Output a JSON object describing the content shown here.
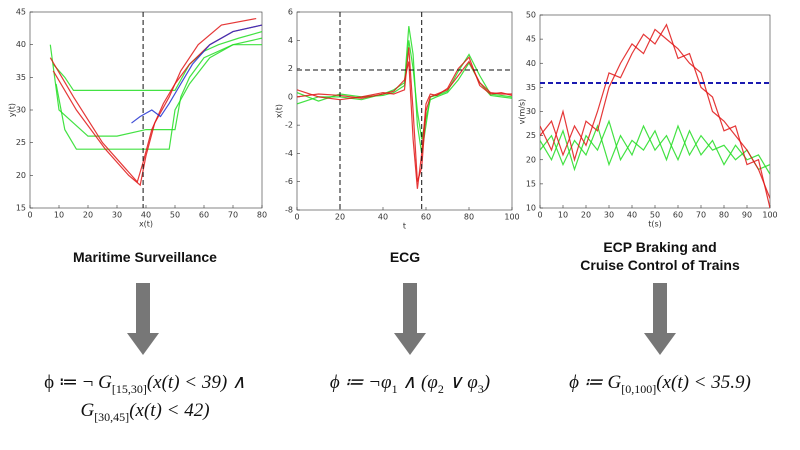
{
  "chart_data": [
    {
      "type": "line",
      "xlabel": "x(t)",
      "ylabel": "y(t)",
      "xlim": [
        0,
        80
      ],
      "ylim": [
        15,
        45
      ],
      "xticks": [
        0,
        10,
        20,
        30,
        40,
        50,
        60,
        70,
        80
      ],
      "yticks": [
        15,
        20,
        25,
        30,
        35,
        40,
        45
      ],
      "reference_lines": {
        "x": [
          39
        ]
      },
      "series": [
        {
          "color": "#22dd22",
          "x": [
            7,
            10,
            15,
            20,
            30,
            40,
            50,
            52,
            55,
            60,
            70,
            80
          ],
          "values": [
            40,
            30,
            28,
            26,
            26,
            27,
            27,
            32,
            35,
            38,
            40,
            41
          ]
        },
        {
          "color": "#22dd22",
          "x": [
            8,
            12,
            15,
            25,
            35,
            45,
            50,
            55,
            60,
            65,
            72,
            80
          ],
          "values": [
            37,
            35,
            33,
            33,
            33,
            33,
            33,
            37,
            39,
            40,
            41,
            42
          ]
        },
        {
          "color": "#22dd22",
          "x": [
            9,
            12,
            16,
            25,
            35,
            45,
            48,
            50,
            55,
            62,
            70,
            80
          ],
          "values": [
            34,
            27,
            24,
            24,
            24,
            24,
            24,
            30,
            34,
            38,
            40,
            40
          ]
        },
        {
          "color": "#e01515",
          "x": [
            7,
            15,
            25,
            33,
            37,
            39,
            42,
            46,
            50,
            55,
            62,
            70,
            80
          ],
          "values": [
            38,
            32,
            25,
            21,
            19,
            22,
            27,
            31,
            34,
            37,
            40,
            42,
            43
          ]
        },
        {
          "color": "#e01515",
          "x": [
            8,
            16,
            26,
            34,
            38,
            40,
            43,
            48,
            52,
            58,
            66,
            78
          ],
          "values": [
            36,
            30,
            24,
            20,
            18.5,
            23,
            28,
            32,
            36,
            40,
            43,
            44
          ]
        },
        {
          "color": "#2030d0",
          "x": [
            35,
            38,
            42,
            45,
            48,
            52,
            56,
            62,
            70,
            80
          ],
          "values": [
            28,
            29,
            30,
            29,
            31,
            34,
            37,
            40,
            42,
            43
          ]
        }
      ]
    },
    {
      "type": "line",
      "xlabel": "t",
      "ylabel": "x(t)",
      "xlim": [
        0,
        100
      ],
      "ylim": [
        -8,
        6
      ],
      "xticks": [
        0,
        20,
        40,
        60,
        80,
        100
      ],
      "yticks": [
        -8,
        -6,
        -4,
        -2,
        0,
        2,
        4,
        6
      ],
      "reference_lines": {
        "x": [
          20,
          58
        ],
        "y": [
          1.9
        ]
      },
      "x": [
        0,
        10,
        20,
        30,
        40,
        45,
        50,
        52,
        54,
        56,
        58,
        60,
        62,
        65,
        70,
        75,
        80,
        85,
        90,
        95,
        100
      ],
      "series": [
        {
          "color": "#22dd22",
          "values": [
            -0.5,
            0,
            0,
            -0.2,
            0.2,
            0.5,
            1,
            5,
            3,
            -2,
            -4,
            -2,
            0,
            0.1,
            0.4,
            1.8,
            3,
            1.5,
            0.2,
            0.1,
            0
          ]
        },
        {
          "color": "#22dd22",
          "values": [
            0.3,
            -0.3,
            0.2,
            0,
            0.1,
            0.3,
            0.8,
            4,
            2,
            -1,
            -3,
            -1.5,
            -0.2,
            0,
            0.3,
            1.2,
            2.4,
            1,
            0.1,
            0,
            -0.1
          ]
        },
        {
          "color": "#e01515",
          "values": [
            0.5,
            0,
            -0.2,
            0,
            0.3,
            0.2,
            0.5,
            3.5,
            -1,
            -6,
            -5,
            -1,
            0,
            0.2,
            0.5,
            1.5,
            2.5,
            1,
            0.3,
            0.2,
            0.2
          ]
        },
        {
          "color": "#e01515",
          "values": [
            0,
            0.2,
            0.1,
            -0.1,
            0.2,
            0.4,
            1.2,
            2.5,
            -3,
            -6.5,
            -4,
            -0.5,
            0.2,
            0.1,
            0.6,
            2,
            2.8,
            0.8,
            0.2,
            0.3,
            0.1
          ]
        }
      ]
    },
    {
      "type": "line",
      "xlabel": "t(s)",
      "ylabel": "v(m/s)",
      "xlim": [
        0,
        100
      ],
      "ylim": [
        10,
        50
      ],
      "xticks": [
        0,
        10,
        20,
        30,
        40,
        50,
        60,
        70,
        80,
        90,
        100
      ],
      "yticks": [
        10,
        15,
        20,
        25,
        30,
        35,
        40,
        45,
        50
      ],
      "reference_lines": {
        "y": [
          35.9
        ]
      },
      "x": [
        0,
        5,
        10,
        15,
        20,
        25,
        30,
        35,
        40,
        45,
        50,
        55,
        60,
        65,
        70,
        75,
        80,
        85,
        90,
        95,
        100
      ],
      "series": [
        {
          "color": "#22dd22",
          "values": [
            24,
            20,
            26,
            18,
            25,
            22,
            28,
            20,
            24,
            22,
            26,
            20,
            27,
            21,
            25,
            22,
            23,
            20,
            22,
            18,
            19
          ]
        },
        {
          "color": "#22dd22",
          "values": [
            22,
            25,
            19,
            24,
            21,
            27,
            19,
            25,
            21,
            27,
            22,
            25,
            20,
            26,
            21,
            24,
            19,
            23,
            20,
            21,
            17
          ]
        },
        {
          "color": "#e01515",
          "values": [
            27,
            22,
            30,
            20,
            28,
            26,
            35,
            40,
            44,
            42,
            47,
            45,
            43,
            40,
            38,
            30,
            28,
            25,
            22,
            18,
            12
          ]
        },
        {
          "color": "#e01515",
          "values": [
            25,
            28,
            21,
            27,
            23,
            30,
            38,
            37,
            42,
            46,
            44,
            48,
            41,
            42,
            35,
            33,
            26,
            27,
            19,
            20,
            10
          ]
        }
      ]
    }
  ],
  "captions": [
    "Maritime Surveillance",
    "ECG",
    "ECP Braking and",
    "Cruise Control of Trains"
  ],
  "formulas": [
    [
      "ϕ ≔ ¬ ",
      "G",
      "[15,30]",
      "(x(t) < 39) ∧",
      "G",
      "[30,45]",
      "(x(t) < 42)"
    ],
    [
      "ϕ ≔ ¬φ",
      "1",
      " ∧ (φ",
      "2",
      " ∨ φ",
      "3",
      ")"
    ],
    [
      "ϕ ≔ ",
      "G",
      "[0,100]",
      "(x(t) < 35.9)"
    ]
  ]
}
